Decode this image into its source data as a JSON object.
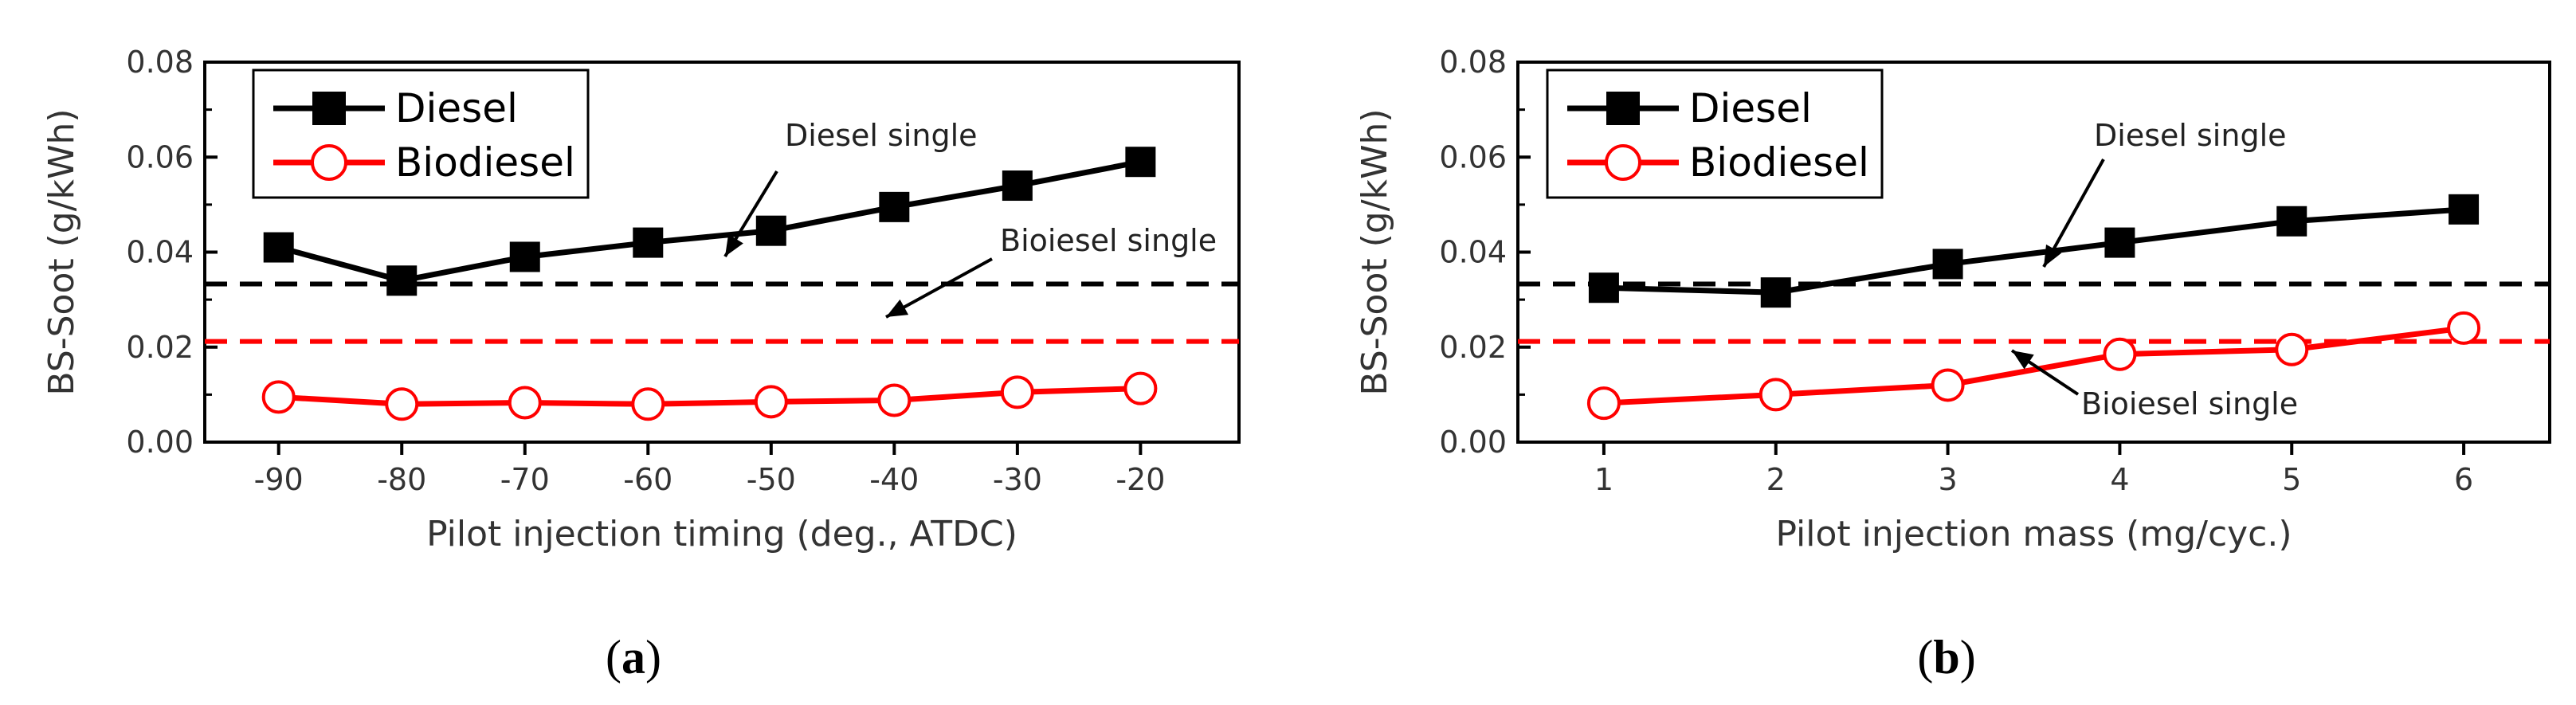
{
  "chart_data": [
    {
      "type": "line",
      "panel_label": "a",
      "xlabel": "Pilot injection timing (deg., ATDC)",
      "ylabel": "BS-Soot (g/kWh)",
      "x": [
        -90,
        -80,
        -70,
        -60,
        -50,
        -40,
        -30,
        -20
      ],
      "x_ticks": [
        "-90",
        "-80",
        "-70",
        "-60",
        "-50",
        "-40",
        "-30",
        "-20"
      ],
      "xlim": [
        -96,
        -12
      ],
      "ylim": [
        0,
        0.08
      ],
      "y_ticks": [
        "0.00",
        "0.02",
        "0.04",
        "0.06",
        "0.08"
      ],
      "y_tick_values": [
        0,
        0.02,
        0.04,
        0.06,
        0.08
      ],
      "series": [
        {
          "name": "Diesel",
          "color": "#000000",
          "marker": "filled-square",
          "values": [
            0.041,
            0.034,
            0.039,
            0.042,
            0.0445,
            0.0495,
            0.054,
            0.059
          ]
        },
        {
          "name": "Biodiesel",
          "color": "#ff0000",
          "marker": "open-circle",
          "values": [
            0.0095,
            0.008,
            0.0083,
            0.008,
            0.0085,
            0.0088,
            0.0105,
            0.0113
          ]
        }
      ],
      "reference_lines": [
        {
          "label": "Diesel single",
          "color": "#000000",
          "value": 0.0333,
          "style": "dashed"
        },
        {
          "label": "Bioiesel single",
          "color": "#ff0000",
          "value": 0.0212,
          "style": "dashed"
        }
      ],
      "legend": {
        "position": "top-left",
        "entries": [
          "Diesel",
          "Biodiesel"
        ]
      }
    },
    {
      "type": "line",
      "panel_label": "b",
      "xlabel": "Pilot injection mass (mg/cyc.)",
      "ylabel": "BS-Soot (g/kWh)",
      "x": [
        1,
        2,
        3,
        4,
        5,
        6
      ],
      "x_ticks": [
        "1",
        "2",
        "3",
        "4",
        "5",
        "6"
      ],
      "xlim": [
        0.5,
        6.5
      ],
      "ylim": [
        0,
        0.08
      ],
      "y_ticks": [
        "0.00",
        "0.02",
        "0.04",
        "0.06",
        "0.08"
      ],
      "y_tick_values": [
        0,
        0.02,
        0.04,
        0.06,
        0.08
      ],
      "series": [
        {
          "name": "Diesel",
          "color": "#000000",
          "marker": "filled-square",
          "values": [
            0.0325,
            0.0315,
            0.0375,
            0.042,
            0.0465,
            0.049
          ]
        },
        {
          "name": "Biodiesel",
          "color": "#ff0000",
          "marker": "open-circle",
          "values": [
            0.0082,
            0.01,
            0.012,
            0.0185,
            0.0195,
            0.024
          ]
        }
      ],
      "reference_lines": [
        {
          "label": "Diesel single",
          "color": "#000000",
          "value": 0.0333,
          "style": "dashed"
        },
        {
          "label": "Bioiesel single",
          "color": "#ff0000",
          "value": 0.0212,
          "style": "dashed"
        }
      ],
      "legend": {
        "position": "top-left",
        "entries": [
          "Diesel",
          "Biodiesel"
        ]
      }
    }
  ]
}
